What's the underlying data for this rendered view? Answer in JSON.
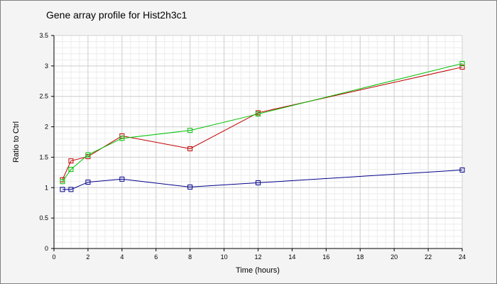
{
  "chart_data": {
    "type": "line",
    "title": "Gene array profile for Hist2h3c1",
    "xlabel": "Time (hours)",
    "ylabel": "Ratio to Ctrl",
    "xlim": [
      0,
      24
    ],
    "ylim": [
      0,
      3.5
    ],
    "x_ticks": [
      0,
      2,
      4,
      6,
      8,
      10,
      12,
      14,
      16,
      18,
      20,
      22,
      24
    ],
    "y_ticks": [
      0,
      0.5,
      1,
      1.5,
      2,
      2.5,
      3,
      3.5
    ],
    "grid": true,
    "legend": "none",
    "x": [
      0.5,
      1,
      2,
      4,
      8,
      12,
      24
    ],
    "series": [
      {
        "color": "#c00000",
        "values": [
          1.13,
          1.44,
          1.51,
          1.85,
          1.64,
          2.23,
          2.98
        ]
      },
      {
        "color": "#00c000",
        "values": [
          1.1,
          1.3,
          1.54,
          1.81,
          1.94,
          2.21,
          3.04
        ]
      },
      {
        "color": "#00008b",
        "values": [
          0.97,
          0.97,
          1.09,
          1.14,
          1.01,
          1.08,
          1.29
        ]
      }
    ]
  },
  "colors": {
    "background": "#f4f4f4",
    "plot_background": "#ffffff",
    "grid_major": "#d0d0d0",
    "grid_minor": "#ececec",
    "axis": "#000000"
  }
}
